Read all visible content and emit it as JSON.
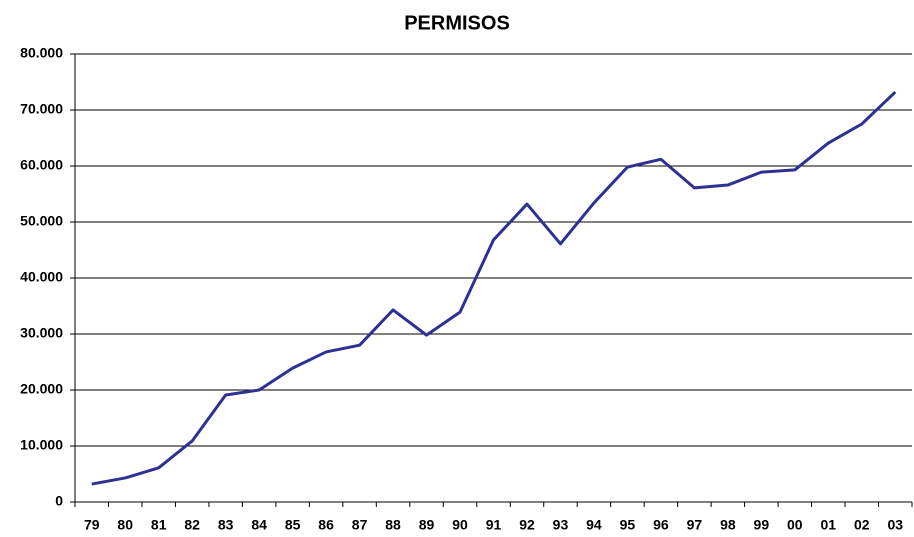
{
  "chart_data": {
    "type": "line",
    "title": "PERMISOS",
    "categories": [
      "79",
      "80",
      "81",
      "82",
      "83",
      "84",
      "85",
      "86",
      "87",
      "88",
      "89",
      "90",
      "91",
      "92",
      "93",
      "94",
      "95",
      "96",
      "97",
      "98",
      "99",
      "00",
      "01",
      "02",
      "03"
    ],
    "series": [
      {
        "color": "#2e3192",
        "values": [
          3200,
          4300,
          6100,
          10900,
          19100,
          20000,
          23900,
          26800,
          28000,
          34300,
          29800,
          33900,
          46800,
          53200,
          46100,
          53400,
          59800,
          61200,
          56100,
          56600,
          58900,
          59300,
          64100,
          67500,
          73200
        ]
      }
    ],
    "ylim": [
      0,
      80000
    ],
    "yticks": [
      0,
      {
        "value": 10000,
        "label": "10.000"
      },
      {
        "value": 20000,
        "label": "20.000"
      },
      {
        "value": 30000,
        "label": "30.000"
      },
      {
        "value": 40000,
        "label": "40.000"
      },
      {
        "value": 50000,
        "label": "50.000"
      },
      {
        "value": 60000,
        "label": "60.000"
      },
      {
        "value": 70000,
        "label": "70.000"
      },
      {
        "value": 80000,
        "label": "80.000"
      }
    ],
    "grid": true
  }
}
